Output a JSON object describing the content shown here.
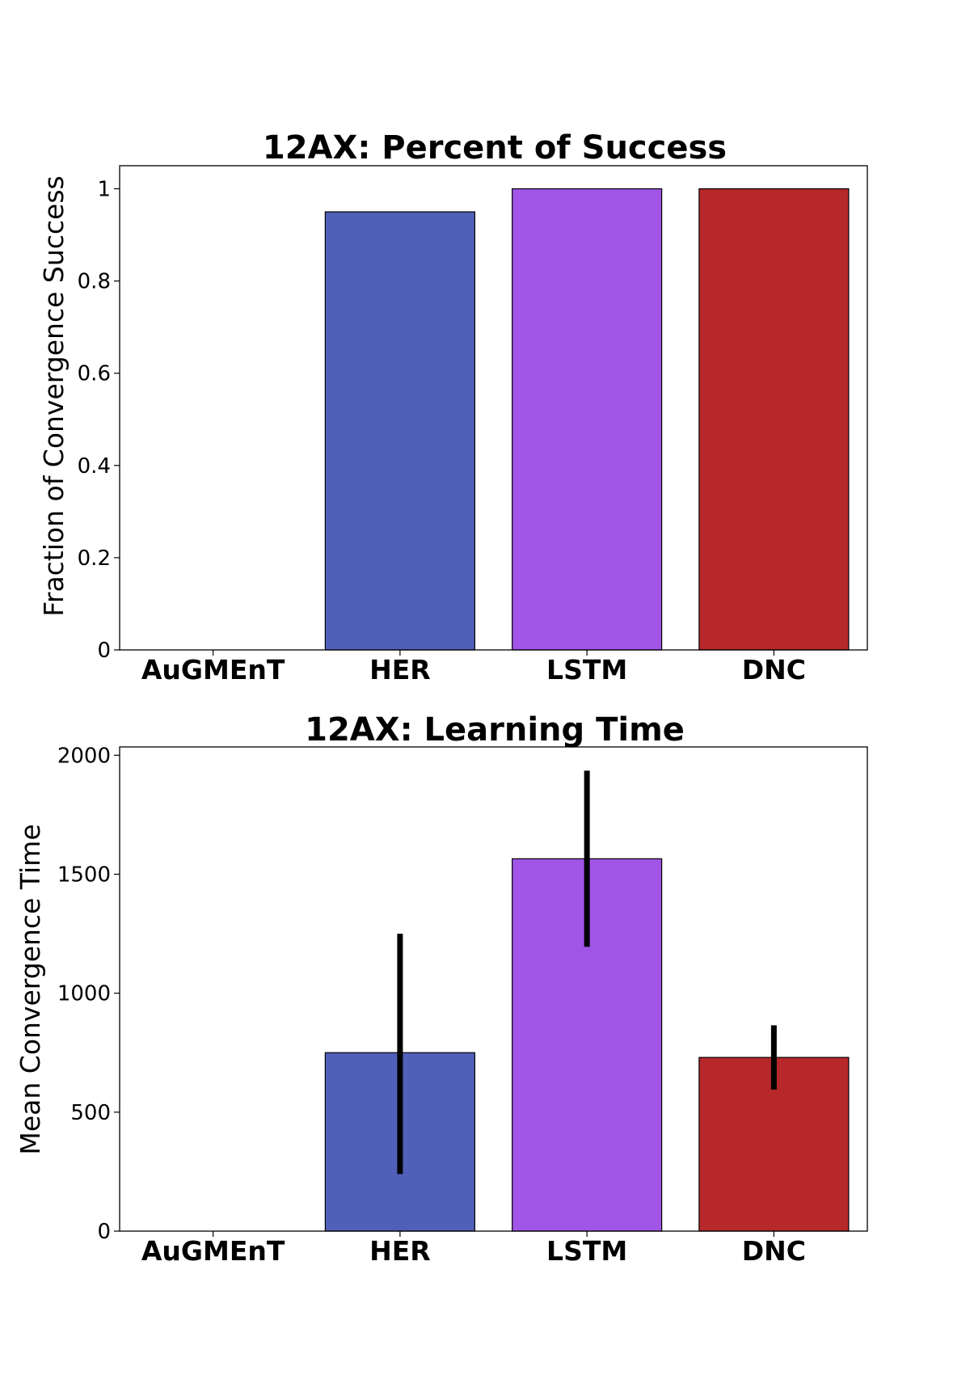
{
  "chart_data": [
    {
      "type": "bar",
      "title": "12AX: Percent of Success",
      "xlabel": "",
      "ylabel": "Fraction of Convergence Success",
      "categories": [
        "AuGMEnT",
        "HER",
        "LSTM",
        "DNC"
      ],
      "values": [
        0,
        0.95,
        1,
        1
      ],
      "colors": [
        "#5060b8",
        "#5060b8",
        "#a055e6",
        "#b6282a"
      ],
      "ylim": [
        0,
        1.05
      ],
      "yticks": [
        0,
        0.2,
        0.4,
        0.6,
        0.8,
        1
      ],
      "ytick_labels": [
        "0",
        "0.2",
        "0.4",
        "0.6",
        "0.8",
        "1"
      ],
      "grid": false
    },
    {
      "type": "bar",
      "title": "12AX: Learning Time",
      "xlabel": "",
      "ylabel": "Mean Convergence Time",
      "categories": [
        "AuGMEnT",
        "HER",
        "LSTM",
        "DNC"
      ],
      "values": [
        0,
        750,
        1565,
        730
      ],
      "error_low": [
        0,
        240,
        1195,
        595
      ],
      "error_high": [
        0,
        1250,
        1935,
        865
      ],
      "colors": [
        "#5060b8",
        "#5060b8",
        "#a055e6",
        "#b6282a"
      ],
      "ylim": [
        0,
        2035
      ],
      "yticks": [
        0,
        500,
        1000,
        1500,
        2000
      ],
      "ytick_labels": [
        "0",
        "500",
        "1000",
        "1500",
        "2000"
      ],
      "grid": false
    }
  ]
}
